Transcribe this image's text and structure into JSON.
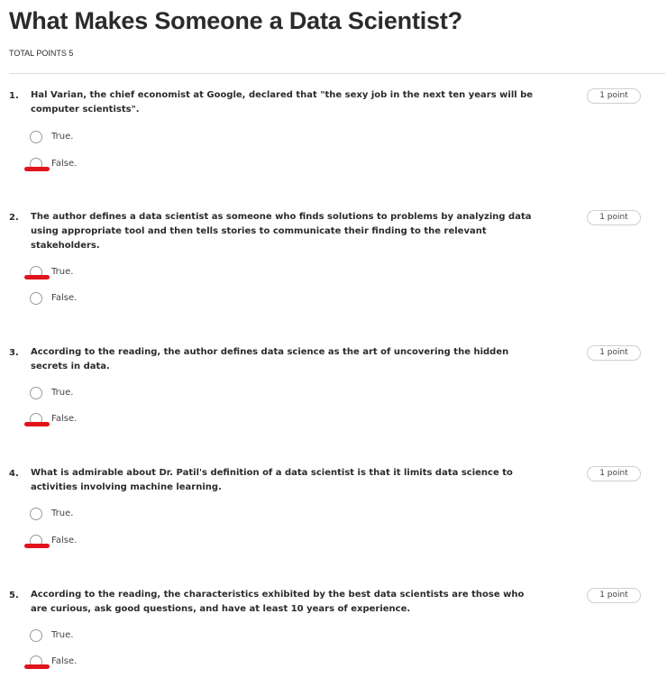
{
  "quiz": {
    "title": "What Makes Someone a Data Scientist?",
    "total_points": "TOTAL POINTS 5"
  },
  "questions": [
    {
      "number": "1.",
      "text": "Hal Varian, the chief economist at Google, declared that \"the sexy job in the next ten years will be computer scientists\".",
      "points": "1 point",
      "options": [
        "True.",
        "False."
      ],
      "marked": "False."
    },
    {
      "number": "2.",
      "text": "The author defines a data scientist as someone who finds solutions to problems by analyzing data using appropriate tool and then tells stories to communicate their finding to the relevant stakeholders.",
      "points": "1 point",
      "options": [
        "True.",
        "False."
      ],
      "marked": "True."
    },
    {
      "number": "3.",
      "text": "According to the reading, the author defines data science as the art of uncovering the hidden secrets in data.",
      "points": "1 point",
      "options": [
        "True.",
        "False."
      ],
      "marked": "False."
    },
    {
      "number": "4.",
      "text": "What is admirable about Dr. Patil's definition of a data scientist is that it limits data science to activities involving machine learning.",
      "points": "1 point",
      "options": [
        "True.",
        "False."
      ],
      "marked": "False."
    },
    {
      "number": "5.",
      "text": "According to the reading, the characteristics exhibited by the best data scientists are those who are curious, ask good questions, and have at least 10 years of experience.",
      "points": "1 point",
      "options": [
        "True.",
        "False."
      ],
      "marked": "False."
    }
  ],
  "colors": {
    "annotation_mark": "#e2141b",
    "text": "#2b2b2b",
    "radio_border": "#9a9a9a"
  }
}
